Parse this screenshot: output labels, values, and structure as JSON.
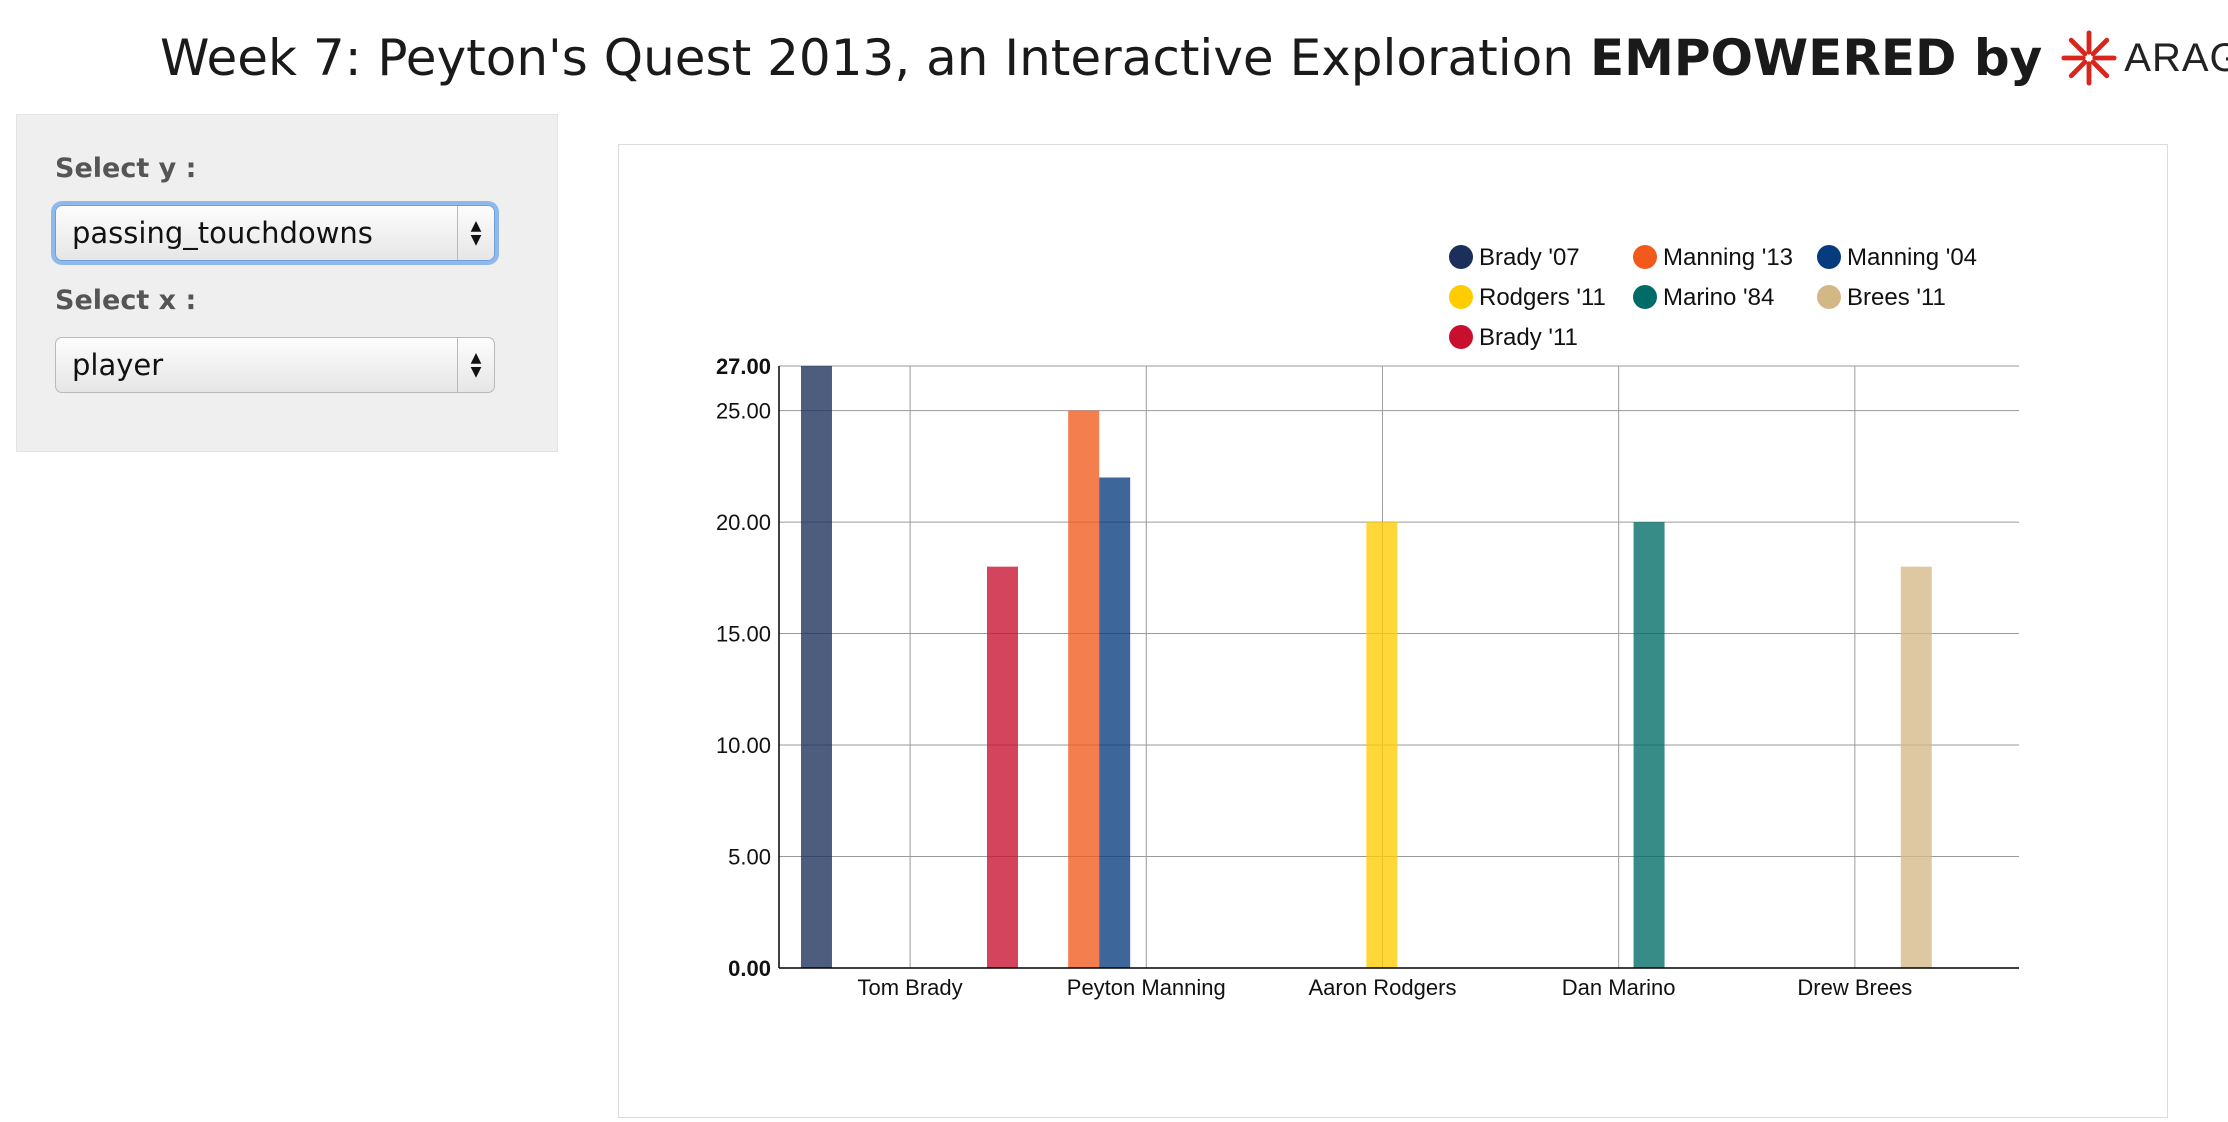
{
  "header": {
    "title_prefix": "Week 7: Peyton's Quest 2013, an Interactive Exploration",
    "title_bold": "EMPOWERED by",
    "logo_word": "ARAGORN",
    "logo_color": "#d9261c"
  },
  "controls": {
    "y_label": "Select y :",
    "y_value": "passing_touchdowns",
    "x_label": "Select x :",
    "x_value": "player"
  },
  "chart_data": {
    "type": "bar",
    "categories": [
      "Tom Brady",
      "Peyton Manning",
      "Aaron Rodgers",
      "Dan Marino",
      "Drew Brees"
    ],
    "ylim": [
      0,
      27
    ],
    "yticks": [
      "0.00",
      "5.00",
      "10.00",
      "15.00",
      "20.00",
      "25.00",
      "27.00"
    ],
    "grid": true,
    "legend_position": "top-right",
    "series": [
      {
        "name": "Brady '07",
        "color": "#1c2f5a",
        "category": "Tom Brady",
        "value": 27
      },
      {
        "name": "Manning '13",
        "color": "#f25a1c",
        "category": "Peyton Manning",
        "value": 25
      },
      {
        "name": "Manning '04",
        "color": "#063b7e",
        "category": "Peyton Manning",
        "value": 22
      },
      {
        "name": "Rodgers '11",
        "color": "#ffcc00",
        "category": "Aaron Rodgers",
        "value": 20
      },
      {
        "name": "Marino '84",
        "color": "#006b67",
        "category": "Dan Marino",
        "value": 20
      },
      {
        "name": "Brees '11",
        "color": "#d3b886",
        "category": "Drew Brees",
        "value": 18
      },
      {
        "name": "Brady '11",
        "color": "#c8102e",
        "category": "Tom Brady",
        "value": 18
      }
    ]
  }
}
